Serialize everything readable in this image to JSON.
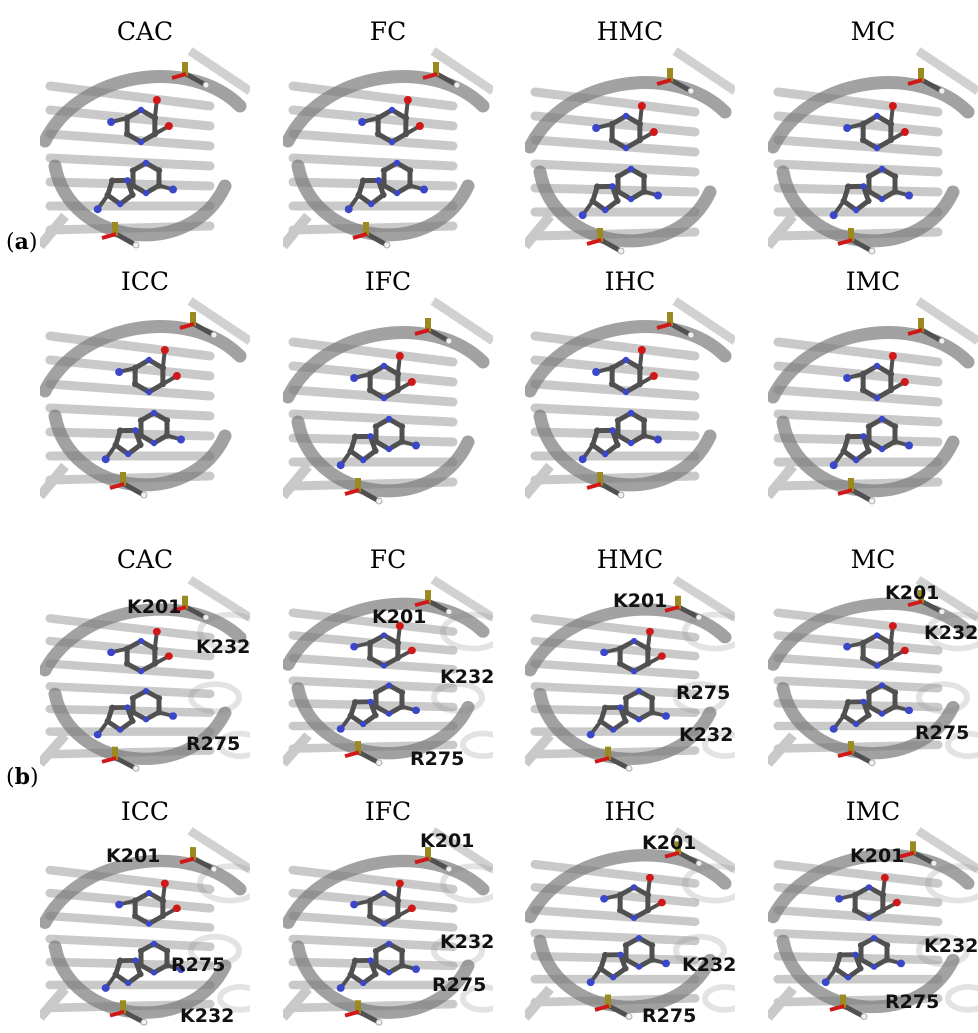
{
  "part_labels": {
    "a": "a",
    "b": "b"
  },
  "rows": [
    {
      "section": "a",
      "panels": [
        {
          "title": "CAC"
        },
        {
          "title": "FC"
        },
        {
          "title": "HMC"
        },
        {
          "title": "MC"
        }
      ]
    },
    {
      "section": "a",
      "panels": [
        {
          "title": "ICC"
        },
        {
          "title": "IFC"
        },
        {
          "title": "IHC"
        },
        {
          "title": "IMC"
        }
      ]
    },
    {
      "section": "b",
      "panels": [
        {
          "title": "CAC",
          "residues": [
            "K201",
            "K232",
            "R275"
          ]
        },
        {
          "title": "FC",
          "residues": [
            "K201",
            "K232",
            "R275"
          ]
        },
        {
          "title": "HMC",
          "residues": [
            "K201",
            "R275",
            "K232"
          ]
        },
        {
          "title": "MC",
          "residues": [
            "K201",
            "K232",
            "R275"
          ]
        }
      ]
    },
    {
      "section": "b",
      "panels": [
        {
          "title": "ICC",
          "residues": [
            "K201",
            "R275",
            "K232"
          ]
        },
        {
          "title": "IFC",
          "residues": [
            "K201",
            "K232",
            "R275"
          ]
        },
        {
          "title": "IHC",
          "residues": [
            "K201",
            "K232",
            "R275"
          ]
        },
        {
          "title": "IMC",
          "residues": [
            "K201",
            "K232",
            "R275"
          ]
        }
      ]
    }
  ],
  "colors": {
    "backbone": "#7a7a7a",
    "carbon": "#505050",
    "nitrogen": "#3a47c8",
    "oxygen": "#d01818",
    "phosphorus": "#9a8a20",
    "hydrogen": "#f0f0f0"
  }
}
